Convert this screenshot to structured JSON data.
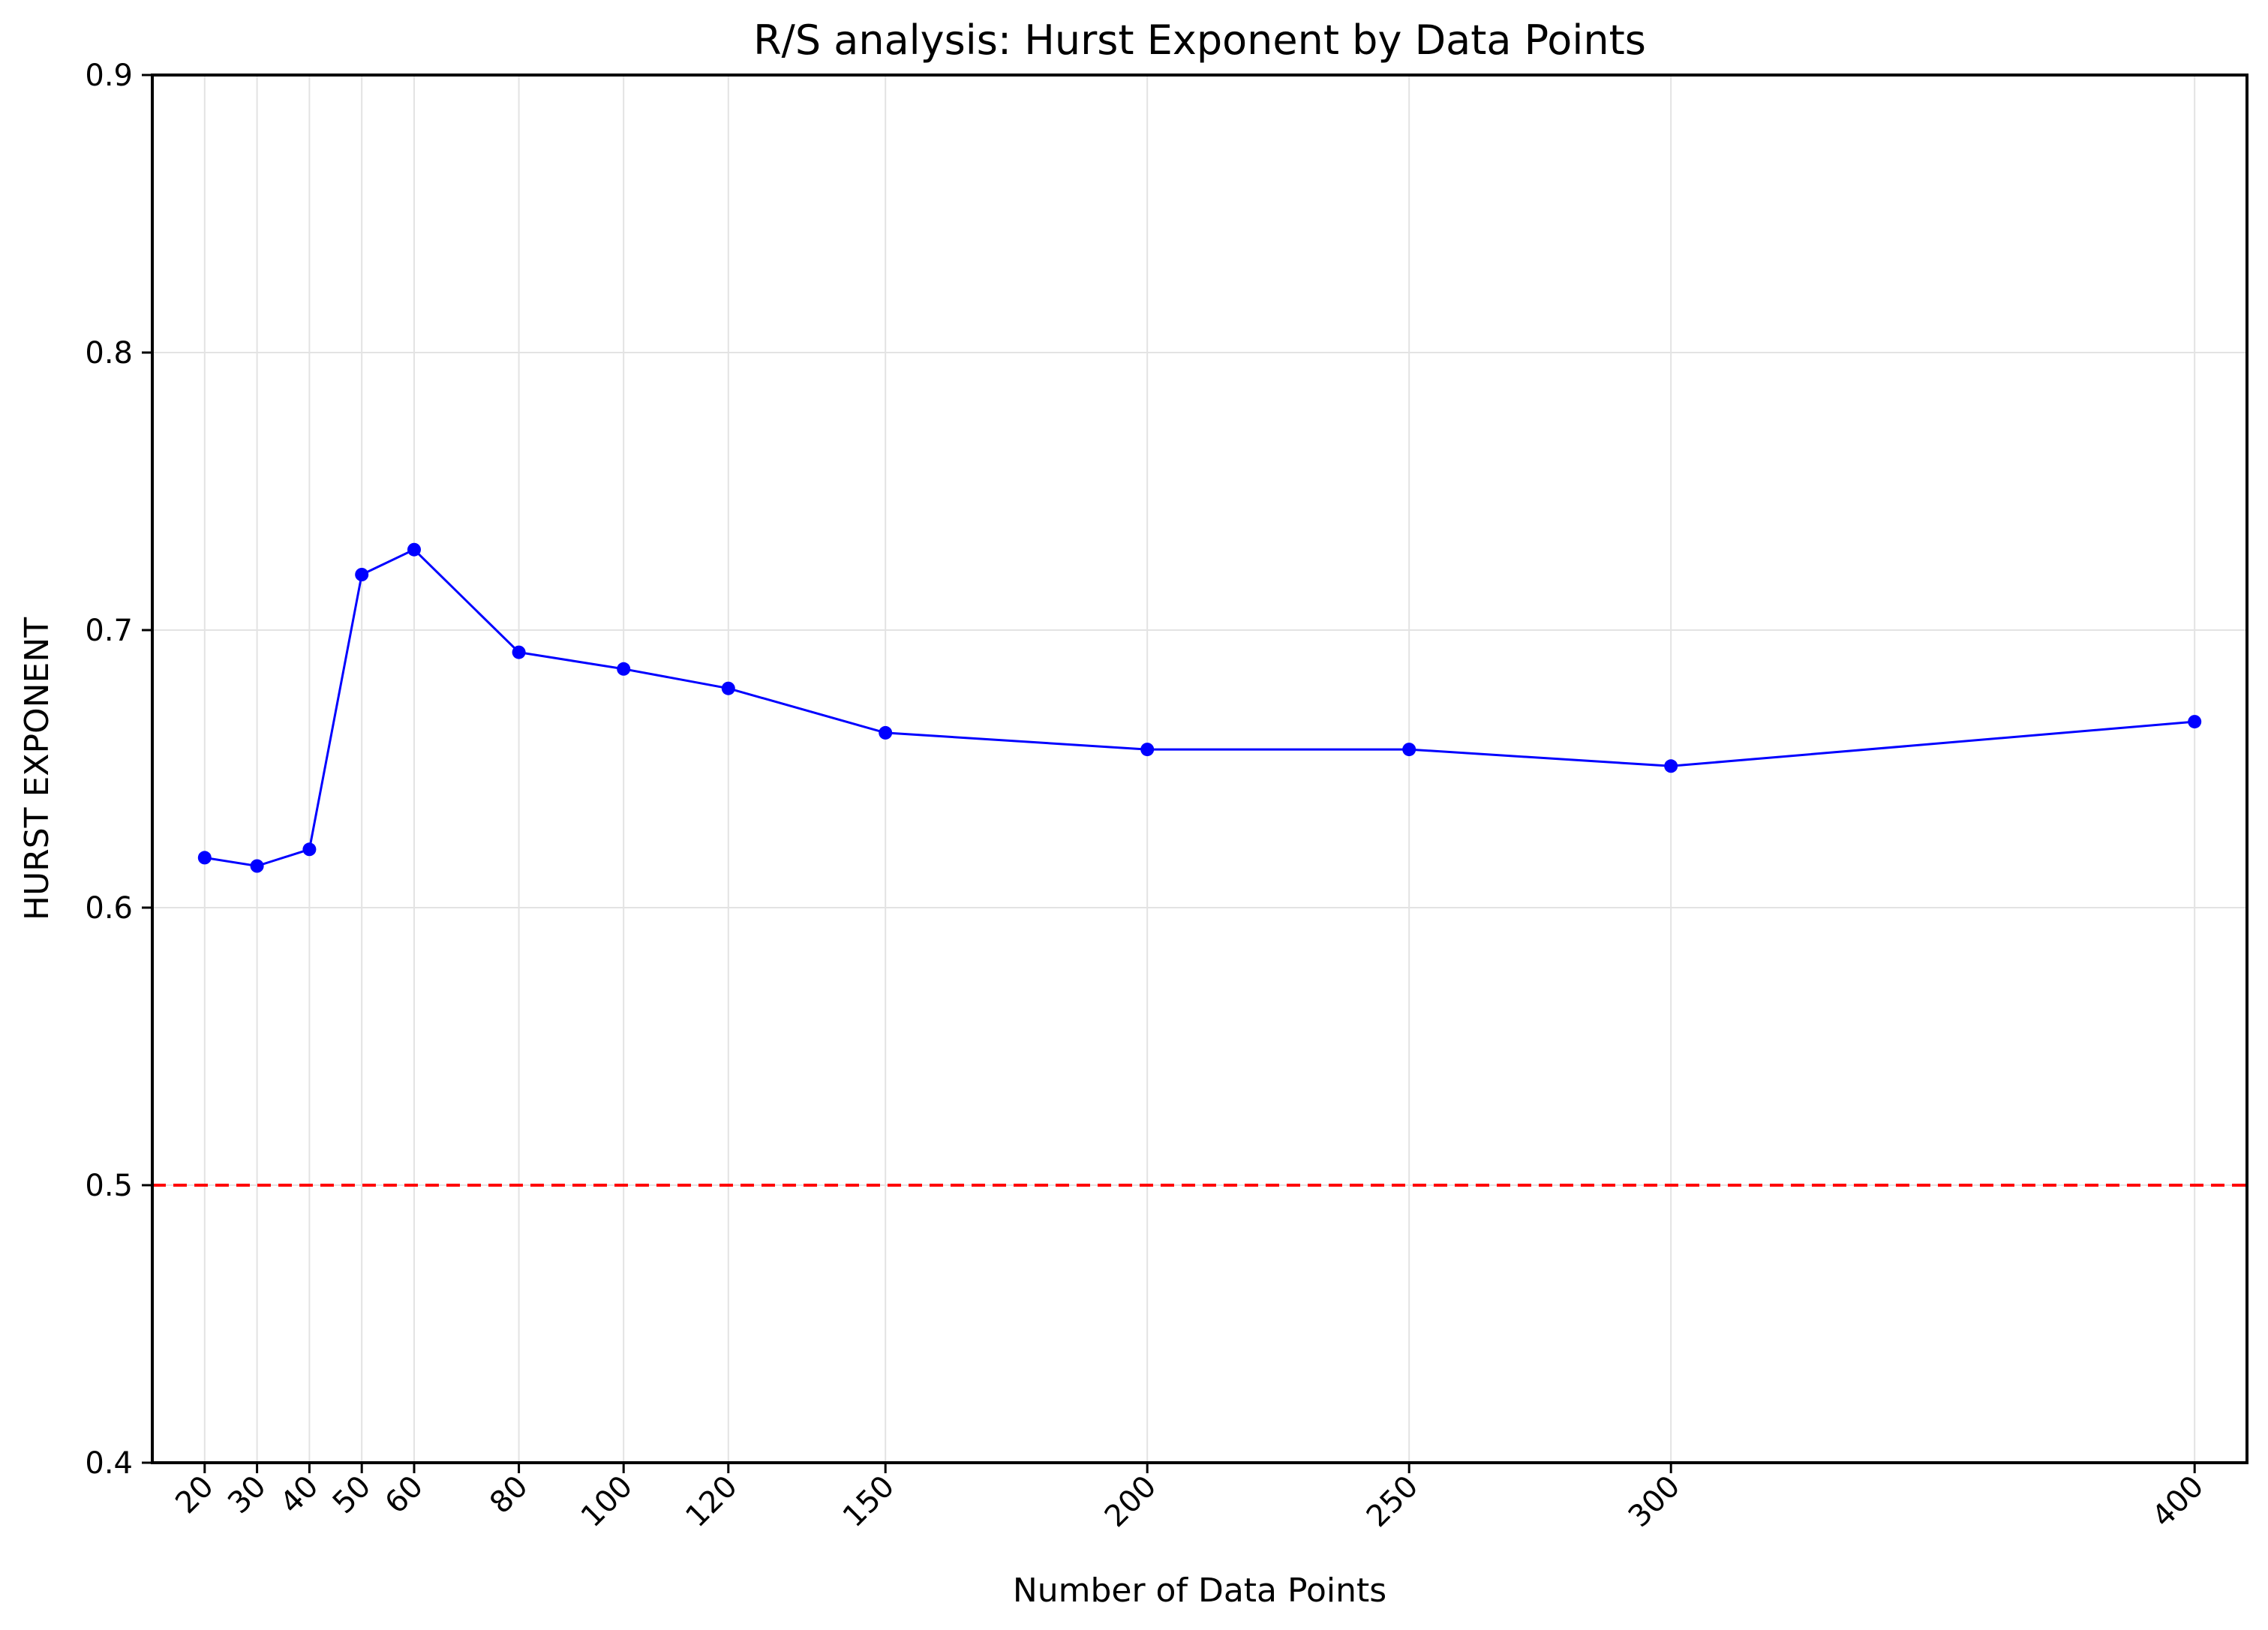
{
  "chart_data": {
    "type": "line",
    "title": "R/S analysis: Hurst Exponent by Data Points",
    "xlabel": "Number of Data Points",
    "ylabel": "HURST EXPONENT",
    "xlim": [
      10,
      410
    ],
    "ylim": [
      0.4,
      0.9
    ],
    "x_ticks": [
      20,
      30,
      40,
      50,
      60,
      80,
      100,
      120,
      150,
      200,
      250,
      300,
      400
    ],
    "x_tick_labels": [
      "20",
      "30",
      "40",
      "50",
      "60",
      "80",
      "100",
      "120",
      "150",
      "200",
      "250",
      "300",
      "400"
    ],
    "y_ticks": [
      0.4,
      0.5,
      0.6,
      0.7,
      0.8,
      0.9
    ],
    "y_tick_labels": [
      "0.4",
      "0.5",
      "0.6",
      "0.7",
      "0.8",
      "0.9"
    ],
    "grid": true,
    "series": [
      {
        "x": [
          20,
          30,
          40,
          50,
          60,
          80,
          100,
          120,
          150,
          200,
          250,
          300,
          400
        ],
        "y": [
          0.618,
          0.615,
          0.621,
          0.72,
          0.729,
          0.692,
          0.686,
          0.679,
          0.663,
          0.657,
          0.657,
          0.651,
          0.667
        ],
        "color": "#0000ff",
        "marker": "circle"
      }
    ],
    "reference_line": {
      "y": 0.5,
      "color": "#ff0000",
      "style": "dashed"
    }
  }
}
